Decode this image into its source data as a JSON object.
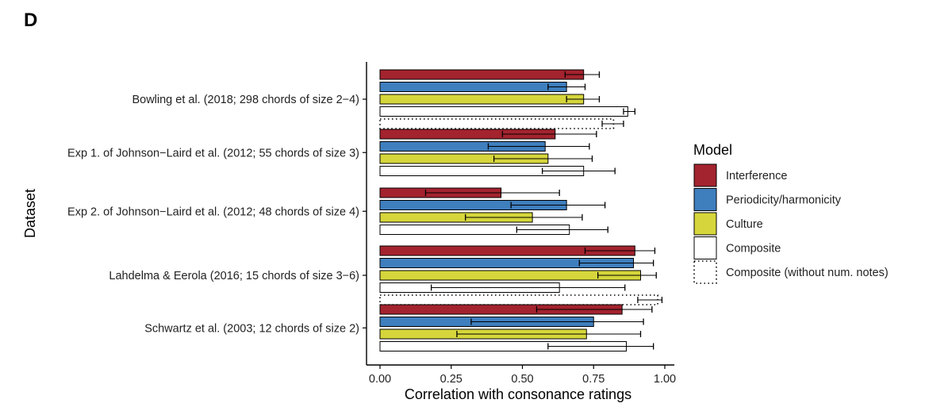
{
  "panel_label": "D",
  "chart_data": {
    "type": "bar",
    "orientation": "horizontal",
    "ylabel": "Dataset",
    "xlabel": "Correlation with consonance ratings",
    "xlim": [
      0,
      1.0
    ],
    "xticks": [
      "0.00",
      "0.25",
      "0.50",
      "0.75",
      "1.00"
    ],
    "xtick_values": [
      0,
      0.25,
      0.5,
      0.75,
      1.0
    ],
    "grid": false,
    "legend": {
      "title": "Model",
      "placement": "right",
      "entries": [
        {
          "label": "Interference",
          "color": "#a3232e",
          "style": "solid"
        },
        {
          "label": "Periodicity/harmonicity",
          "color": "#3f7fbe",
          "style": "solid"
        },
        {
          "label": "Culture",
          "color": "#d6d63c",
          "style": "solid"
        },
        {
          "label": "Composite",
          "color": "#ffffff",
          "style": "solid"
        },
        {
          "label": "Composite (without num. notes)",
          "color": "#ffffff",
          "style": "dotted"
        }
      ]
    },
    "categories": [
      "Bowling et al. (2018; 298 chords of size 2−4)",
      "Exp 1. of Johnson−Laird et al. (2012; 55 chords of size 3)",
      "Exp 2. of Johnson−Laird et al. (2012; 48 chords of size 4)",
      "Lahdelma & Eerola (2016; 15 chords of size 3−6)",
      "Schwartz et al. (2003; 12 chords of size 2)"
    ],
    "series": [
      {
        "name": "Interference",
        "values": [
          0.715,
          0.615,
          0.425,
          0.895,
          0.85
        ],
        "lo": [
          0.65,
          0.43,
          0.16,
          0.72,
          0.55
        ],
        "hi": [
          0.77,
          0.76,
          0.63,
          0.965,
          0.955
        ]
      },
      {
        "name": "Periodicity/harmonicity",
        "values": [
          0.655,
          0.58,
          0.655,
          0.89,
          0.75
        ],
        "lo": [
          0.59,
          0.38,
          0.46,
          0.7,
          0.32
        ],
        "hi": [
          0.72,
          0.735,
          0.79,
          0.96,
          0.925
        ]
      },
      {
        "name": "Culture",
        "values": [
          0.715,
          0.59,
          0.535,
          0.915,
          0.725
        ],
        "lo": [
          0.655,
          0.4,
          0.3,
          0.765,
          0.27
        ],
        "hi": [
          0.77,
          0.745,
          0.71,
          0.97,
          0.915
        ]
      },
      {
        "name": "Composite",
        "values": [
          0.87,
          0.715,
          0.665,
          0.63,
          0.865
        ],
        "lo": [
          0.855,
          0.57,
          0.48,
          0.18,
          0.59
        ],
        "hi": [
          0.895,
          0.825,
          0.8,
          0.86,
          0.96
        ]
      },
      {
        "name": "Composite (without num. notes)",
        "values": [
          0.82,
          null,
          null,
          0.975,
          null
        ],
        "lo": [
          0.78,
          null,
          null,
          0.905,
          null
        ],
        "hi": [
          0.855,
          null,
          null,
          0.99,
          null
        ]
      }
    ]
  }
}
